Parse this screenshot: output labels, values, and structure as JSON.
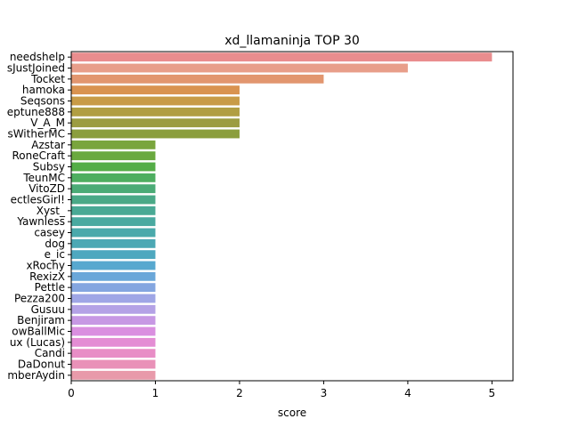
{
  "chart_data": {
    "type": "bar",
    "orientation": "horizontal",
    "title": "xd_llamaninja TOP 30",
    "xlabel": "score",
    "ylabel": "",
    "xlim": [
      0,
      5.25
    ],
    "xticks": [
      "0",
      "1",
      "2",
      "3",
      "4",
      "5"
    ],
    "grid": false,
    "categories": [
      "needshelp",
      "sJustJoined",
      "Tocket",
      "hamoka",
      "Seqsons",
      "eptune888",
      "V_A_M",
      "sWitherMC",
      "Azstar",
      "RoneCraft",
      "Subsy",
      "TeunMC",
      "VitoZD",
      "ectlesGirl!",
      "Xyst_",
      "Yawnless",
      "casey",
      "dog",
      "e_ic",
      "xRochy",
      "RexizX",
      "Pettle",
      "Pezza200",
      "Gusuu",
      "Benjiram",
      "owBallMic",
      "ux (Lucas)",
      "Candi",
      "DaDonut",
      "mberAydin"
    ],
    "values": [
      5,
      4,
      3,
      2,
      2,
      2,
      2,
      2,
      1,
      1,
      1,
      1,
      1,
      1,
      1,
      1,
      1,
      1,
      1,
      1,
      1,
      1,
      1,
      1,
      1,
      1,
      1,
      1,
      1,
      1
    ],
    "colors": [
      "#e98d8e",
      "#e89e8a",
      "#e2966f",
      "#d99350",
      "#c89b47",
      "#b19e43",
      "#9c9c41",
      "#8b9e3d",
      "#7aa53d",
      "#6aa93f",
      "#54ad47",
      "#4eae60",
      "#4bab76",
      "#4aa987",
      "#49a995",
      "#49a9a0",
      "#4aa9ab",
      "#4ca8b4",
      "#4ea8bf",
      "#57a8cf",
      "#6aa7d9",
      "#84a6e0",
      "#9fa6e6",
      "#b4a2e6",
      "#c798e4",
      "#da8fe0",
      "#e48dd4",
      "#e88dc6",
      "#e991b8",
      "#e89aaa"
    ]
  }
}
